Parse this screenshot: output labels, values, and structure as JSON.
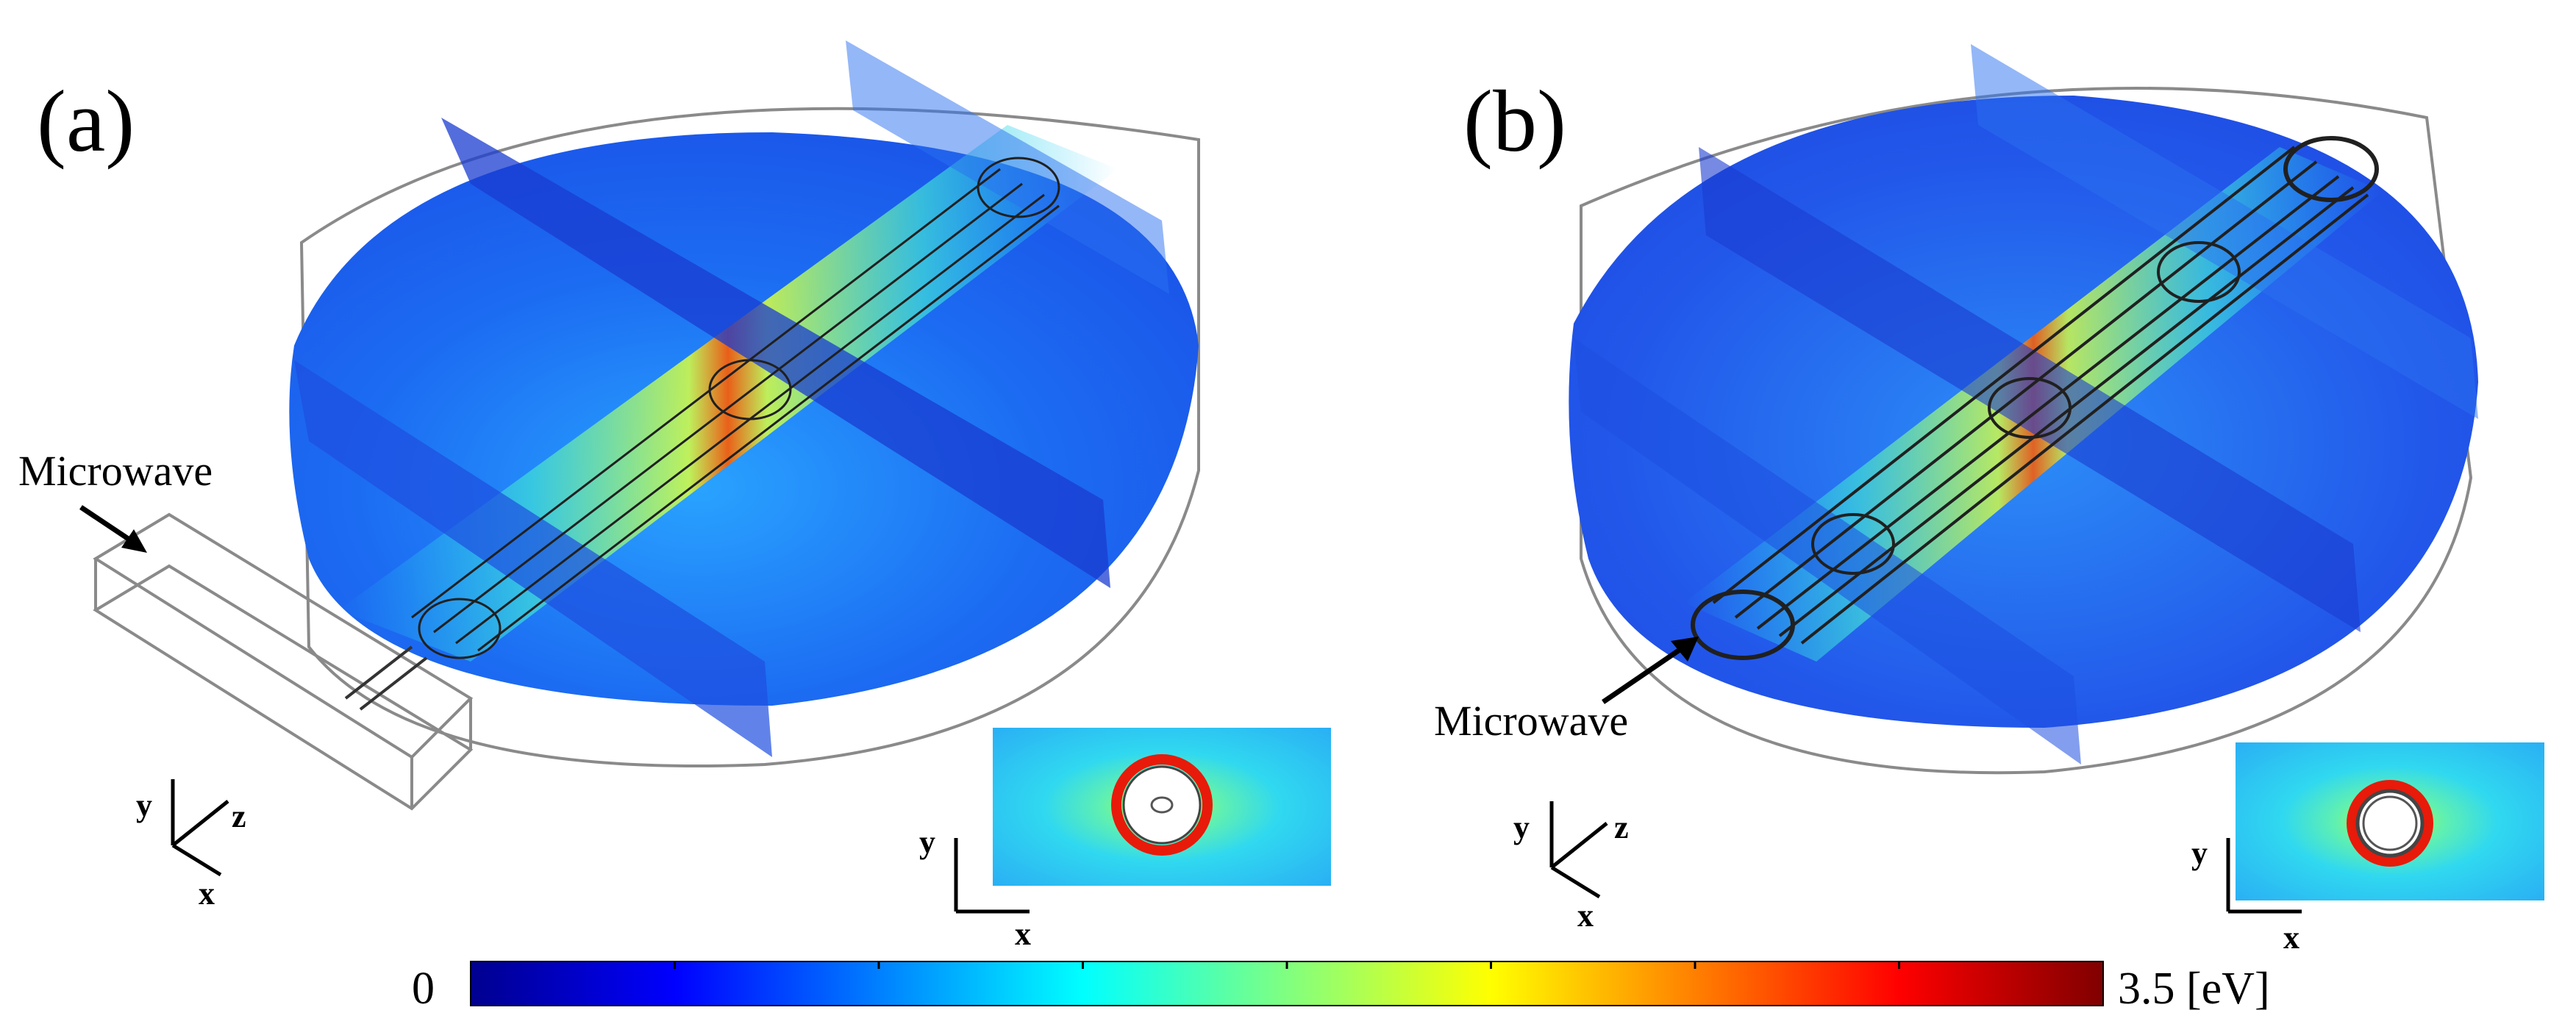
{
  "panels": [
    {
      "label": "(a)",
      "callout": "Microwave",
      "axes": {
        "y": "y",
        "z": "z",
        "x": "x"
      },
      "inset_axes": {
        "y": "y",
        "x": "x"
      }
    },
    {
      "label": "(b)",
      "callout": "Microwave",
      "axes": {
        "y": "y",
        "z": "z",
        "x": "x"
      },
      "inset_axes": {
        "y": "y",
        "x": "x"
      }
    }
  ],
  "colorbar": {
    "min_label": "0",
    "max_label": "3.5 [eV]",
    "min": 0,
    "max": 3.5,
    "colormap": "jet",
    "colors": [
      "#00008f",
      "#0000ff",
      "#0080ff",
      "#00ffff",
      "#80ff80",
      "#ffff00",
      "#ff8000",
      "#ff0000",
      "#800000"
    ],
    "tick_count": 7
  }
}
